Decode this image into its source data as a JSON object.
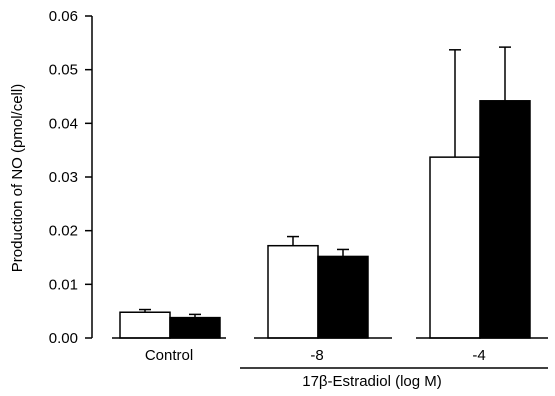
{
  "chart_data": {
    "type": "bar",
    "ylabel": "Production of NO (pmol/cell)",
    "ylim": [
      0,
      0.06
    ],
    "yticks": [
      "0.00",
      "0.01",
      "0.02",
      "0.03",
      "0.04",
      "0.05",
      "0.06"
    ],
    "categories": [
      "Control",
      "-8",
      "-4"
    ],
    "group_label": "17β-Estradiol (log M)",
    "series": [
      {
        "fill": "#ffffff",
        "values": [
          0.0048,
          0.0172,
          0.0337
        ],
        "error": [
          0.0005,
          0.0017,
          0.02
        ]
      },
      {
        "fill": "#000000",
        "values": [
          0.0038,
          0.0152,
          0.0442
        ],
        "error": [
          0.0006,
          0.0013,
          0.01
        ]
      }
    ],
    "legend": "none",
    "grid": false
  }
}
